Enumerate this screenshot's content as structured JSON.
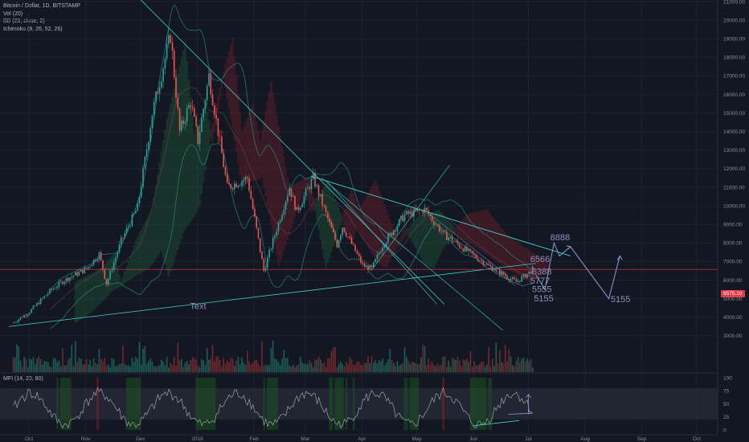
{
  "legend": {
    "title": "Bitcoin / Dollar, 1D, BITSTAMP",
    "vol": "Vol (20)",
    "bb": "BB (20, close, 2)",
    "ichimoku": "Ichimoku (9, 26, 52, 26)",
    "mfi": "MFI (14, 20, 80)"
  },
  "current_price_label": "6575.10",
  "colors": {
    "background": "#131722",
    "up": "#26a69a",
    "down": "#ef5350",
    "trendline": "#3fd0c5",
    "annotation": "#8a93b8",
    "price_line": "#e53945"
  },
  "chart_data": {
    "type": "candlestick",
    "symbol": "Bitcoin / Dollar",
    "interval": "1D",
    "exchange": "BITSTAMP",
    "y_axis_ticks": [
      "21000.00",
      "20000.00",
      "19000.00",
      "18000.00",
      "17000.00",
      "16000.00",
      "15000.00",
      "14000.00",
      "13000.00",
      "12000.00",
      "11000.00",
      "10000.00",
      "9000.00",
      "8000.00",
      "7000.00",
      "6000.00",
      "5000.00",
      "4000.00",
      "3000.00"
    ],
    "x_axis_labels": [
      "Oct",
      "Nov",
      "Dec",
      "2018",
      "Feb",
      "Mar",
      "Apr",
      "May",
      "Jun",
      "Jul",
      "Aug",
      "Sep",
      "Oct"
    ],
    "mfi_axis_ticks": [
      "100",
      "75",
      "50",
      "25",
      "0"
    ],
    "price_path": [
      [
        "2017-09-22",
        3700
      ],
      [
        "2017-10-01",
        4300
      ],
      [
        "2017-10-12",
        5400
      ],
      [
        "2017-10-20",
        6000
      ],
      [
        "2017-11-01",
        6600
      ],
      [
        "2017-11-08",
        7400
      ],
      [
        "2017-11-12",
        5800
      ],
      [
        "2017-11-20",
        8100
      ],
      [
        "2017-11-29",
        9900
      ],
      [
        "2017-12-07",
        15000
      ],
      [
        "2017-12-17",
        19200
      ],
      [
        "2017-12-22",
        14000
      ],
      [
        "2017-12-28",
        15600
      ],
      [
        "2018-01-01",
        13500
      ],
      [
        "2018-01-07",
        17000
      ],
      [
        "2018-01-17",
        11000
      ],
      [
        "2018-01-28",
        11500
      ],
      [
        "2018-02-06",
        6500
      ],
      [
        "2018-02-20",
        11000
      ],
      [
        "2018-02-24",
        9700
      ],
      [
        "2018-03-05",
        11500
      ],
      [
        "2018-03-18",
        7900
      ],
      [
        "2018-03-21",
        8900
      ],
      [
        "2018-04-01",
        6800
      ],
      [
        "2018-04-06",
        6600
      ],
      [
        "2018-04-12",
        7900
      ],
      [
        "2018-04-24",
        9500
      ],
      [
        "2018-05-05",
        9800
      ],
      [
        "2018-05-15",
        8500
      ],
      [
        "2018-05-22",
        8000
      ],
      [
        "2018-05-29",
        7500
      ],
      [
        "2018-06-10",
        6700
      ],
      [
        "2018-06-24",
        5900
      ],
      [
        "2018-07-01",
        6400
      ],
      [
        "2018-07-03",
        6575
      ]
    ],
    "annotations": [
      "Text",
      "6566",
      "6388",
      "5777",
      "5555",
      "5155",
      "8888",
      "5155"
    ],
    "projection_path": [
      [
        "2018-07-05",
        6300
      ],
      [
        "2018-07-10",
        5500
      ],
      [
        "2018-07-15",
        8000
      ],
      [
        "2018-07-18",
        7300
      ],
      [
        "2018-07-24",
        7800
      ],
      [
        "2018-08-14",
        5000
      ],
      [
        "2018-08-20",
        7300
      ]
    ],
    "mfi_bands": [
      80,
      20
    ],
    "indicators": [
      "Vol (20)",
      "BB (20, close, 2)",
      "Ichimoku (9, 26, 52, 26)",
      "MFI (14, 20, 80)"
    ]
  }
}
